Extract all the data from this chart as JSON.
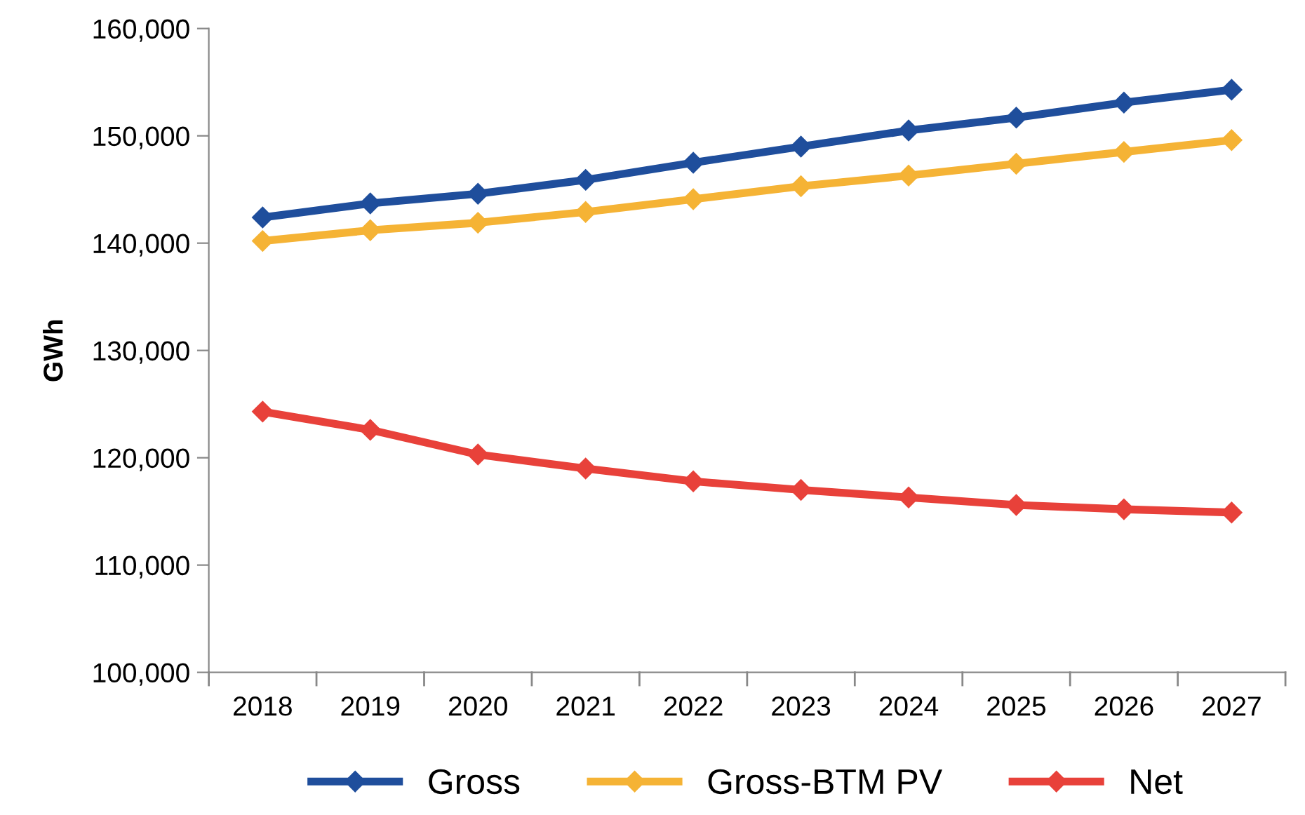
{
  "chart_data": {
    "type": "line",
    "ylabel": "GWh",
    "categories": [
      "2018",
      "2019",
      "2020",
      "2021",
      "2022",
      "2023",
      "2024",
      "2025",
      "2026",
      "2027"
    ],
    "series": [
      {
        "name": "Gross",
        "color": "#1f4e9c",
        "values": [
          142400,
          143700,
          144600,
          145900,
          147500,
          149000,
          150500,
          151700,
          153100,
          154300
        ]
      },
      {
        "name": "Gross-BTM PV",
        "color": "#f5b335",
        "values": [
          140200,
          141200,
          141900,
          142900,
          144100,
          145300,
          146300,
          147400,
          148500,
          149600
        ]
      },
      {
        "name": "Net",
        "color": "#e8413a",
        "values": [
          124300,
          122600,
          120300,
          119000,
          117800,
          117000,
          116300,
          115600,
          115200,
          114900
        ]
      }
    ],
    "ylim": [
      100000,
      160000
    ],
    "yticks": [
      {
        "value": 100000,
        "label": "100,000"
      },
      {
        "value": 110000,
        "label": "110,000"
      },
      {
        "value": 120000,
        "label": "120,000"
      },
      {
        "value": 130000,
        "label": "130,000"
      },
      {
        "value": 140000,
        "label": "140,000"
      },
      {
        "value": 150000,
        "label": "150,000"
      },
      {
        "value": 160000,
        "label": "160,000"
      }
    ],
    "grid": false,
    "legend": "bottom",
    "marker": "diamond",
    "line_style": "solid"
  }
}
